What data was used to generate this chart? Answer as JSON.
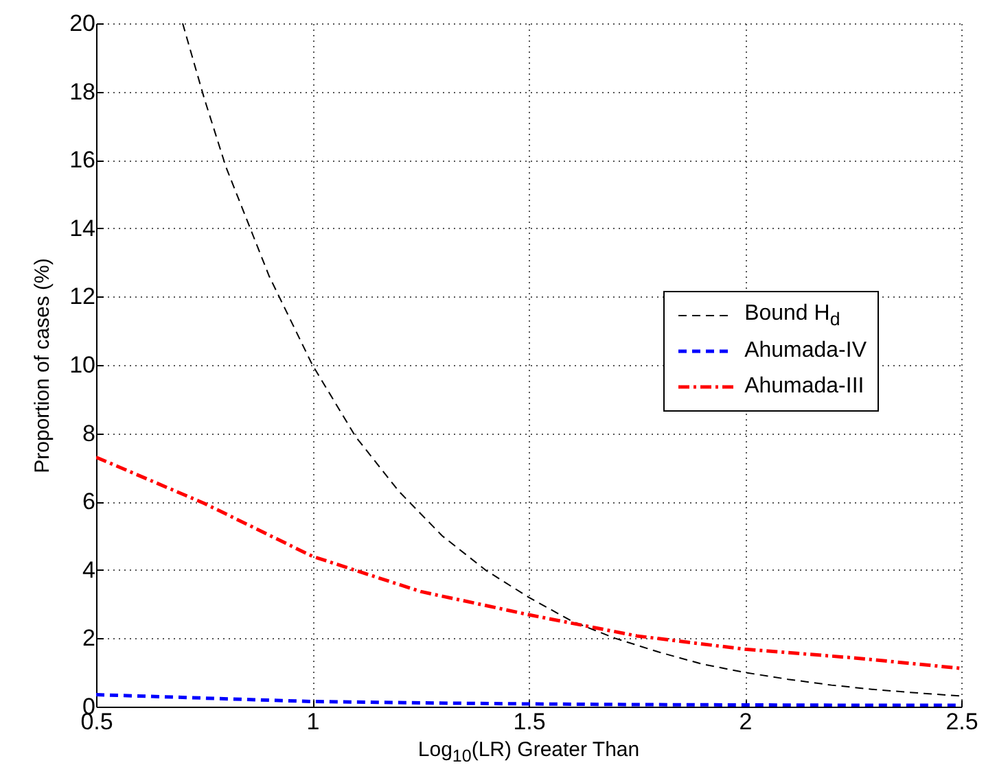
{
  "chart_data": {
    "type": "line",
    "xlabel": "Log$_{10}$(LR) Greater Than",
    "ylabel": "Proportion of cases (%)",
    "xlim": [
      0.5,
      2.5
    ],
    "xticks": [
      0.5,
      1,
      1.5,
      2,
      2.5
    ],
    "ylim": [
      0,
      20
    ],
    "yticks": [
      0,
      2,
      4,
      6,
      8,
      10,
      12,
      14,
      16,
      18,
      20
    ],
    "grid": true,
    "legend": "right",
    "series": [
      {
        "name": "Bound H$_{d}$",
        "color": "#000000",
        "line_style": "dashed",
        "x": [
          0.7,
          0.75,
          0.8,
          0.9,
          1.0,
          1.1,
          1.2,
          1.3,
          1.4,
          1.5,
          1.6,
          1.7,
          1.8,
          1.9,
          2.0,
          2.1,
          2.2,
          2.3,
          2.4,
          2.5
        ],
        "values": [
          20,
          17.8,
          15.8,
          12.6,
          10,
          7.9,
          6.3,
          5.0,
          4.0,
          3.2,
          2.5,
          2.0,
          1.6,
          1.25,
          1.0,
          0.8,
          0.63,
          0.5,
          0.4,
          0.31
        ]
      },
      {
        "name": "Ahumada-IV",
        "color": "#0000ff",
        "line_style": "dashed",
        "x": [
          0.5,
          0.75,
          1.0,
          1.25,
          1.5,
          1.75,
          2.0,
          2.25,
          2.5
        ],
        "values": [
          0.35,
          0.25,
          0.15,
          0.11,
          0.08,
          0.06,
          0.05,
          0.04,
          0.04
        ]
      },
      {
        "name": "Ahumada-III",
        "color": "#ff0000",
        "line_style": "dashdot",
        "x": [
          0.5,
          0.75,
          1.0,
          1.25,
          1.5,
          1.75,
          2.0,
          2.25,
          2.5
        ],
        "values": [
          7.3,
          5.95,
          4.4,
          3.37,
          2.69,
          2.07,
          1.68,
          1.43,
          1.12
        ]
      }
    ]
  }
}
